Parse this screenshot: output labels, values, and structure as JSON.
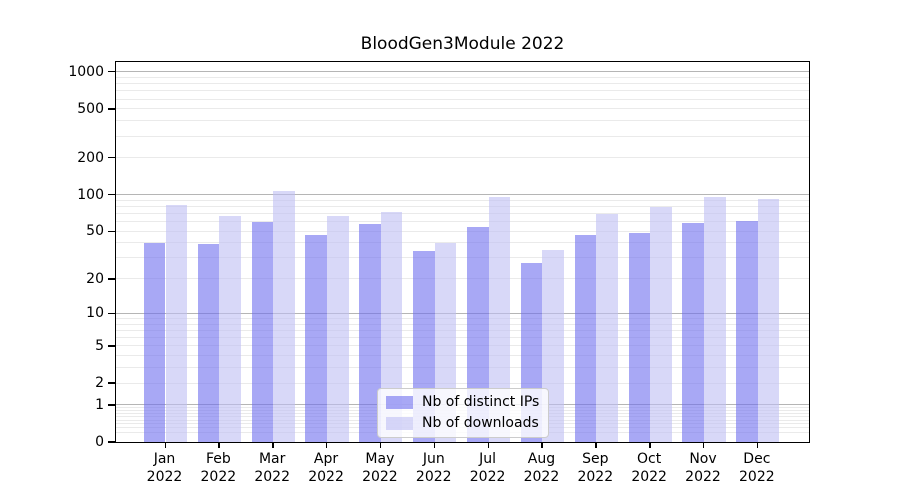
{
  "title": "BloodGen3Module 2022",
  "chart_data": {
    "type": "bar",
    "title": "BloodGen3Module 2022",
    "categories": [
      "Jan 2022",
      "Feb 2022",
      "Mar 2022",
      "Apr 2022",
      "May 2022",
      "Jun 2022",
      "Jul 2022",
      "Aug 2022",
      "Sep 2022",
      "Oct 2022",
      "Nov 2022",
      "Dec 2022"
    ],
    "series": [
      {
        "name": "Nb of distinct IPs",
        "values": [
          40,
          39,
          60,
          47,
          57,
          34,
          54,
          27,
          47,
          48,
          59,
          61
        ]
      },
      {
        "name": "Nb of downloads",
        "values": [
          82,
          67,
          108,
          67,
          72,
          40,
          95,
          35,
          70,
          80,
          96,
          93
        ]
      }
    ],
    "yscale": "log1p",
    "yticks": [
      0,
      1,
      2,
      5,
      10,
      20,
      50,
      100,
      200,
      500,
      1000
    ],
    "ylim": [
      0,
      1230
    ],
    "grid": "horizontal major at 1,10,100,1000 plus faint log minors",
    "legend_position": "lower center"
  },
  "colors": {
    "bar_distinct_ips": "rgba(110,110,238,0.6)",
    "bar_downloads": "rgba(190,190,243,0.6)",
    "grid_major": "#b5b5b5",
    "grid_minor": "#eaeaea",
    "legend_border": "#cccccc"
  }
}
